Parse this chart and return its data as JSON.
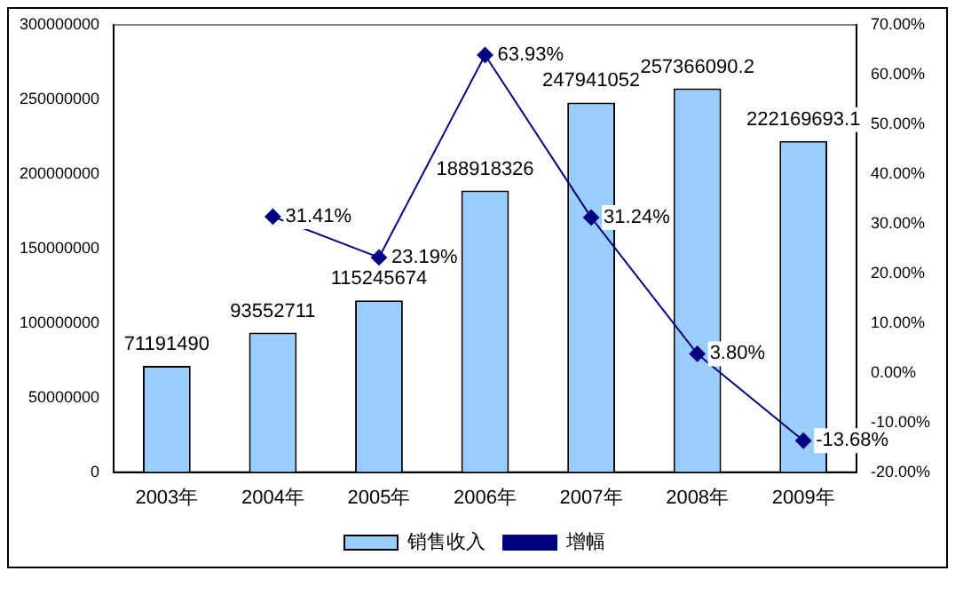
{
  "chart_data": {
    "type": "bar",
    "categories": [
      "2003年",
      "2004年",
      "2005年",
      "2006年",
      "2007年",
      "2008年",
      "2009年"
    ],
    "series": [
      {
        "name": "销售收入",
        "color": "#99ccff",
        "values": [
          71191490,
          93552711,
          115245674,
          188918326,
          247941052,
          257366090.2,
          222169693.1
        ],
        "value_labels": [
          "71191490",
          "93552711",
          "115245674",
          "188918326",
          "247941052",
          "257366090.2",
          "222169693.1"
        ]
      },
      {
        "name": "增幅",
        "type": "line",
        "axis": "y2",
        "color": "#000080",
        "marker": "diamond",
        "values": [
          null,
          31.41,
          23.19,
          63.93,
          31.24,
          3.8,
          -13.68
        ],
        "value_labels": [
          null,
          "31.41%",
          "23.19%",
          "63.93%",
          "31.24%",
          "3.80%",
          "-13.68%"
        ]
      }
    ],
    "ylim": [
      0,
      300000000
    ],
    "yticks": [
      0,
      50000000,
      100000000,
      150000000,
      200000000,
      250000000,
      300000000
    ],
    "y2lim": [
      -20,
      70
    ],
    "y2ticks": [
      {
        "value": -20,
        "label": "-20.00%"
      },
      {
        "value": -10,
        "label": "-10.00%"
      },
      {
        "value": 0,
        "label": "0.00%"
      },
      {
        "value": 10,
        "label": "10.00%"
      },
      {
        "value": 20,
        "label": "20.00%"
      },
      {
        "value": 30,
        "label": "30.00%"
      },
      {
        "value": 40,
        "label": "40.00%"
      },
      {
        "value": 50,
        "label": "50.00%"
      },
      {
        "value": 60,
        "label": "60.00%"
      },
      {
        "value": 70,
        "label": "70.00%"
      }
    ],
    "grid": false,
    "legend": "bottom"
  }
}
